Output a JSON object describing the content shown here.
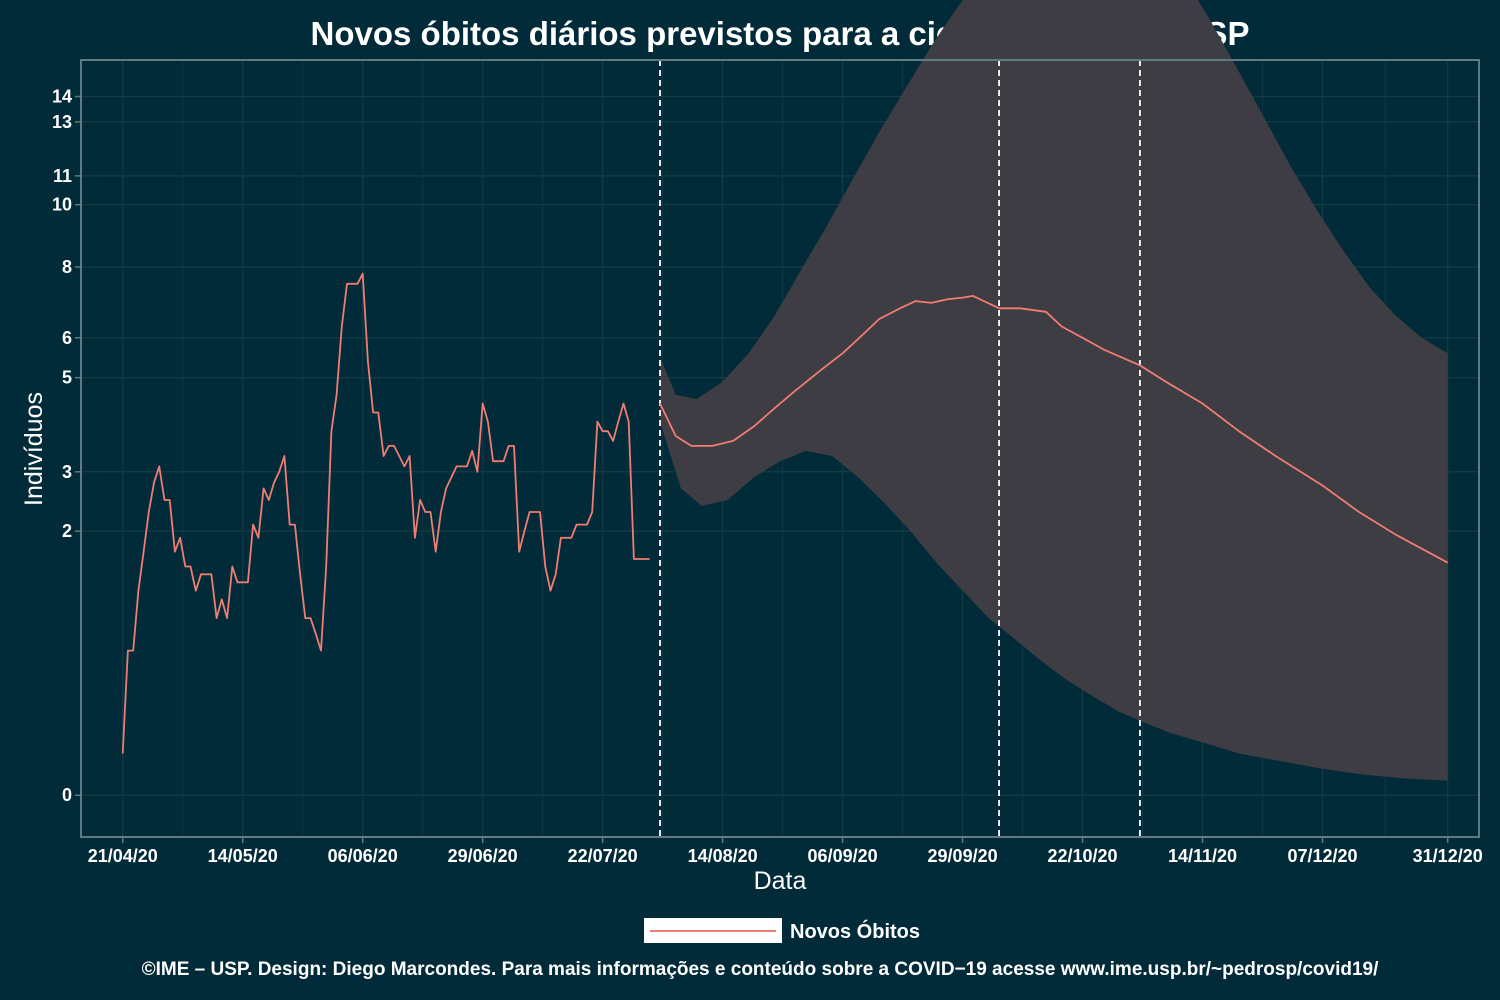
{
  "colors": {
    "background": "#012b38",
    "panel_border": "#5f7a80",
    "grid": "#143c47",
    "band": "#3e3d43",
    "line": "#f07d73",
    "vline": "#ffffff",
    "text": "#ffffff"
  },
  "chart_data": {
    "type": "line",
    "title": "Novos óbitos diários previstos para a cidade de MAUÁ – SP",
    "xlabel": "Data",
    "ylabel": "Indivíduos",
    "y_scale": "sqrt",
    "grid": true,
    "legend_position": "bottom",
    "x_range": [
      "2020-04-13",
      "2021-01-06"
    ],
    "y_range": [
      -0.05,
      15.5
    ],
    "x_ticks": [
      {
        "date": "2020-04-21",
        "label": "21/04/20"
      },
      {
        "date": "2020-05-14",
        "label": "14/05/20"
      },
      {
        "date": "2020-06-06",
        "label": "06/06/20"
      },
      {
        "date": "2020-06-29",
        "label": "29/06/20"
      },
      {
        "date": "2020-07-22",
        "label": "22/07/20"
      },
      {
        "date": "2020-08-14",
        "label": "14/08/20"
      },
      {
        "date": "2020-09-06",
        "label": "06/09/20"
      },
      {
        "date": "2020-09-29",
        "label": "29/09/20"
      },
      {
        "date": "2020-10-22",
        "label": "22/10/20"
      },
      {
        "date": "2020-11-14",
        "label": "14/11/20"
      },
      {
        "date": "2020-12-07",
        "label": "07/12/20"
      },
      {
        "date": "2020-12-31",
        "label": "31/12/20"
      }
    ],
    "y_ticks": [
      {
        "value": 0,
        "label": "0"
      },
      {
        "value": 2,
        "label": "2"
      },
      {
        "value": 3,
        "label": "3"
      },
      {
        "value": 5,
        "label": "5"
      },
      {
        "value": 6,
        "label": "6"
      },
      {
        "value": 8,
        "label": "8"
      },
      {
        "value": 10,
        "label": "10"
      },
      {
        "value": 11,
        "label": "11"
      },
      {
        "value": 13,
        "label": "13"
      },
      {
        "value": 14,
        "label": "14"
      }
    ],
    "vlines": [
      "2020-08-02",
      "2020-10-06",
      "2020-11-02"
    ],
    "series": [
      {
        "name": "Novos Óbitos",
        "type": "line",
        "points": [
          [
            "2020-04-21",
            0.05
          ],
          [
            "2020-04-22",
            0.6
          ],
          [
            "2020-04-23",
            0.6
          ],
          [
            "2020-04-24",
            1.2
          ],
          [
            "2020-04-25",
            1.7
          ],
          [
            "2020-04-26",
            2.3
          ],
          [
            "2020-04-27",
            2.8
          ],
          [
            "2020-04-28",
            3.1
          ],
          [
            "2020-04-29",
            2.5
          ],
          [
            "2020-04-30",
            2.5
          ],
          [
            "2020-05-01",
            1.7
          ],
          [
            "2020-05-02",
            1.9
          ],
          [
            "2020-05-03",
            1.5
          ],
          [
            "2020-05-04",
            1.5
          ],
          [
            "2020-05-05",
            1.2
          ],
          [
            "2020-05-06",
            1.4
          ],
          [
            "2020-05-07",
            1.4
          ],
          [
            "2020-05-08",
            1.4
          ],
          [
            "2020-05-09",
            0.9
          ],
          [
            "2020-05-10",
            1.1
          ],
          [
            "2020-05-11",
            0.9
          ],
          [
            "2020-05-12",
            1.5
          ],
          [
            "2020-05-13",
            1.3
          ],
          [
            "2020-05-14",
            1.3
          ],
          [
            "2020-05-15",
            1.3
          ],
          [
            "2020-05-16",
            2.1
          ],
          [
            "2020-05-17",
            1.9
          ],
          [
            "2020-05-18",
            2.7
          ],
          [
            "2020-05-19",
            2.5
          ],
          [
            "2020-05-20",
            2.8
          ],
          [
            "2020-05-21",
            3.0
          ],
          [
            "2020-05-22",
            3.3
          ],
          [
            "2020-05-23",
            2.1
          ],
          [
            "2020-05-24",
            2.1
          ],
          [
            "2020-05-25",
            1.4
          ],
          [
            "2020-05-26",
            0.9
          ],
          [
            "2020-05-27",
            0.9
          ],
          [
            "2020-05-28",
            0.75
          ],
          [
            "2020-05-29",
            0.6
          ],
          [
            "2020-05-30",
            1.5
          ],
          [
            "2020-05-31",
            3.8
          ],
          [
            "2020-06-01",
            4.6
          ],
          [
            "2020-06-02",
            6.3
          ],
          [
            "2020-06-03",
            7.5
          ],
          [
            "2020-06-04",
            7.5
          ],
          [
            "2020-06-05",
            7.5
          ],
          [
            "2020-06-06",
            7.8
          ],
          [
            "2020-06-07",
            5.4
          ],
          [
            "2020-06-08",
            4.2
          ],
          [
            "2020-06-09",
            4.2
          ],
          [
            "2020-06-10",
            3.3
          ],
          [
            "2020-06-11",
            3.5
          ],
          [
            "2020-06-12",
            3.5
          ],
          [
            "2020-06-13",
            3.3
          ],
          [
            "2020-06-14",
            3.1
          ],
          [
            "2020-06-15",
            3.3
          ],
          [
            "2020-06-16",
            1.9
          ],
          [
            "2020-06-17",
            2.5
          ],
          [
            "2020-06-18",
            2.3
          ],
          [
            "2020-06-19",
            2.3
          ],
          [
            "2020-06-20",
            1.7
          ],
          [
            "2020-06-21",
            2.3
          ],
          [
            "2020-06-22",
            2.7
          ],
          [
            "2020-06-23",
            2.9
          ],
          [
            "2020-06-24",
            3.1
          ],
          [
            "2020-06-25",
            3.1
          ],
          [
            "2020-06-26",
            3.1
          ],
          [
            "2020-06-27",
            3.4
          ],
          [
            "2020-06-28",
            3.0
          ],
          [
            "2020-06-29",
            4.4
          ],
          [
            "2020-06-30",
            4.0
          ],
          [
            "2020-07-01",
            3.2
          ],
          [
            "2020-07-02",
            3.2
          ],
          [
            "2020-07-03",
            3.2
          ],
          [
            "2020-07-04",
            3.5
          ],
          [
            "2020-07-05",
            3.5
          ],
          [
            "2020-07-06",
            1.7
          ],
          [
            "2020-07-07",
            2.0
          ],
          [
            "2020-07-08",
            2.3
          ],
          [
            "2020-07-09",
            2.3
          ],
          [
            "2020-07-10",
            2.3
          ],
          [
            "2020-07-11",
            1.5
          ],
          [
            "2020-07-12",
            1.2
          ],
          [
            "2020-07-13",
            1.4
          ],
          [
            "2020-07-14",
            1.9
          ],
          [
            "2020-07-15",
            1.9
          ],
          [
            "2020-07-16",
            1.9
          ],
          [
            "2020-07-17",
            2.1
          ],
          [
            "2020-07-18",
            2.1
          ],
          [
            "2020-07-19",
            2.1
          ],
          [
            "2020-07-20",
            2.3
          ],
          [
            "2020-07-21",
            4.0
          ],
          [
            "2020-07-22",
            3.8
          ],
          [
            "2020-07-23",
            3.8
          ],
          [
            "2020-07-24",
            3.6
          ],
          [
            "2020-07-25",
            4.0
          ],
          [
            "2020-07-26",
            4.4
          ],
          [
            "2020-07-27",
            4.0
          ],
          [
            "2020-07-28",
            1.6
          ],
          [
            "2020-07-29",
            1.6
          ],
          [
            "2020-07-30",
            1.6
          ],
          [
            "2020-07-31",
            1.6
          ]
        ]
      },
      {
        "name": "Novos Óbitos",
        "type": "forecast_line",
        "points": [
          [
            "2020-08-02",
            4.4
          ],
          [
            "2020-08-05",
            3.7
          ],
          [
            "2020-08-08",
            3.5
          ],
          [
            "2020-08-12",
            3.5
          ],
          [
            "2020-08-16",
            3.6
          ],
          [
            "2020-08-20",
            3.9
          ],
          [
            "2020-08-24",
            4.3
          ],
          [
            "2020-08-28",
            4.7
          ],
          [
            "2020-09-02",
            5.2
          ],
          [
            "2020-09-06",
            5.6
          ],
          [
            "2020-09-10",
            6.1
          ],
          [
            "2020-09-13",
            6.5
          ],
          [
            "2020-09-17",
            6.8
          ],
          [
            "2020-09-20",
            7.0
          ],
          [
            "2020-09-23",
            6.95
          ],
          [
            "2020-09-26",
            7.05
          ],
          [
            "2020-09-29",
            7.1
          ],
          [
            "2020-10-01",
            7.15
          ],
          [
            "2020-10-06",
            6.8
          ],
          [
            "2020-10-10",
            6.8
          ],
          [
            "2020-10-15",
            6.7
          ],
          [
            "2020-10-18",
            6.3
          ],
          [
            "2020-10-22",
            6.0
          ],
          [
            "2020-10-26",
            5.7
          ],
          [
            "2020-11-02",
            5.3
          ],
          [
            "2020-11-07",
            4.9
          ],
          [
            "2020-11-14",
            4.4
          ],
          [
            "2020-11-21",
            3.8
          ],
          [
            "2020-11-28",
            3.3
          ],
          [
            "2020-12-07",
            2.75
          ],
          [
            "2020-12-14",
            2.3
          ],
          [
            "2020-12-21",
            1.95
          ],
          [
            "2020-12-31",
            1.55
          ]
        ]
      }
    ],
    "band": {
      "upper": [
        [
          "2020-08-02",
          5.5
        ],
        [
          "2020-08-05",
          4.6
        ],
        [
          "2020-08-09",
          4.5
        ],
        [
          "2020-08-14",
          4.9
        ],
        [
          "2020-08-19",
          5.6
        ],
        [
          "2020-08-24",
          6.6
        ],
        [
          "2020-08-29",
          7.9
        ],
        [
          "2020-09-03",
          9.3
        ],
        [
          "2020-09-08",
          10.9
        ],
        [
          "2020-09-13",
          12.6
        ],
        [
          "2020-09-18",
          14.3
        ],
        [
          "2020-09-23",
          16.1
        ],
        [
          "2020-09-28",
          17.8
        ],
        [
          "2020-10-03",
          19.4
        ],
        [
          "2020-10-08",
          20.9
        ],
        [
          "2020-10-13",
          22.0
        ],
        [
          "2020-10-18",
          22.8
        ],
        [
          "2020-10-22",
          23.0
        ],
        [
          "2020-10-27",
          22.8
        ],
        [
          "2020-11-01",
          22.0
        ],
        [
          "2020-11-06",
          20.7
        ],
        [
          "2020-11-11",
          19.0
        ],
        [
          "2020-11-16",
          17.0
        ],
        [
          "2020-11-21",
          15.0
        ],
        [
          "2020-11-26",
          13.1
        ],
        [
          "2020-12-01",
          11.3
        ],
        [
          "2020-12-06",
          9.8
        ],
        [
          "2020-12-11",
          8.5
        ],
        [
          "2020-12-16",
          7.4
        ],
        [
          "2020-12-21",
          6.6
        ],
        [
          "2020-12-26",
          6.0
        ],
        [
          "2020-12-31",
          5.6
        ]
      ],
      "lower": [
        [
          "2020-08-02",
          4.0
        ],
        [
          "2020-08-06",
          2.7
        ],
        [
          "2020-08-10",
          2.4
        ],
        [
          "2020-08-15",
          2.5
        ],
        [
          "2020-08-20",
          2.9
        ],
        [
          "2020-08-25",
          3.2
        ],
        [
          "2020-08-30",
          3.4
        ],
        [
          "2020-09-04",
          3.3
        ],
        [
          "2020-09-09",
          2.9
        ],
        [
          "2020-09-14",
          2.45
        ],
        [
          "2020-09-19",
          2.0
        ],
        [
          "2020-09-24",
          1.55
        ],
        [
          "2020-09-29",
          1.2
        ],
        [
          "2020-10-04",
          0.9
        ],
        [
          "2020-10-09",
          0.7
        ],
        [
          "2020-10-14",
          0.52
        ],
        [
          "2020-10-19",
          0.38
        ],
        [
          "2020-10-24",
          0.28
        ],
        [
          "2020-10-29",
          0.2
        ],
        [
          "2020-11-03",
          0.15
        ],
        [
          "2020-11-08",
          0.11
        ],
        [
          "2020-11-14",
          0.08
        ],
        [
          "2020-11-21",
          0.05
        ],
        [
          "2020-11-28",
          0.035
        ],
        [
          "2020-12-07",
          0.02
        ],
        [
          "2020-12-15",
          0.012
        ],
        [
          "2020-12-23",
          0.008
        ],
        [
          "2020-12-31",
          0.006
        ]
      ]
    }
  },
  "legend": {
    "label": "Novos Óbitos"
  },
  "caption": "©IME – USP. Design: Diego Marcondes. Para mais informações e conteúdo sobre a COVID−19 acesse www.ime.usp.br/~pedrosp/covid19/"
}
